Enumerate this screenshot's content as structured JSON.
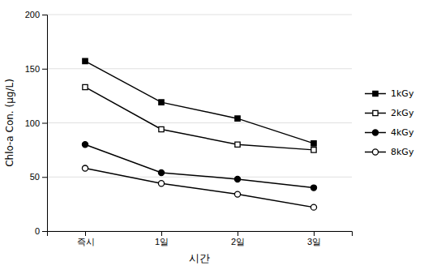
{
  "chart_data": {
    "type": "line",
    "categories": [
      "즉시",
      "1일",
      "2일",
      "3일"
    ],
    "series": [
      {
        "name": "1kGy",
        "color": "#000000",
        "marker": "square",
        "values": [
          157,
          119,
          104,
          81
        ]
      },
      {
        "name": "2kGy",
        "color": "#000000",
        "marker": "square-open",
        "values": [
          133,
          94,
          80,
          75
        ]
      },
      {
        "name": "4kGy",
        "color": "#000000",
        "marker": "circle",
        "values": [
          80,
          54,
          48,
          40
        ]
      },
      {
        "name": "8kGy",
        "color": "#000000",
        "marker": "circle-open",
        "values": [
          58,
          44,
          34,
          22
        ]
      }
    ],
    "xlabel": "시간",
    "ylabel": "Chlo-a Con. (μg/L)",
    "ylim": [
      0,
      200
    ],
    "yticks": [
      0,
      50,
      100,
      150,
      200
    ],
    "grid": true,
    "legend": "right"
  }
}
